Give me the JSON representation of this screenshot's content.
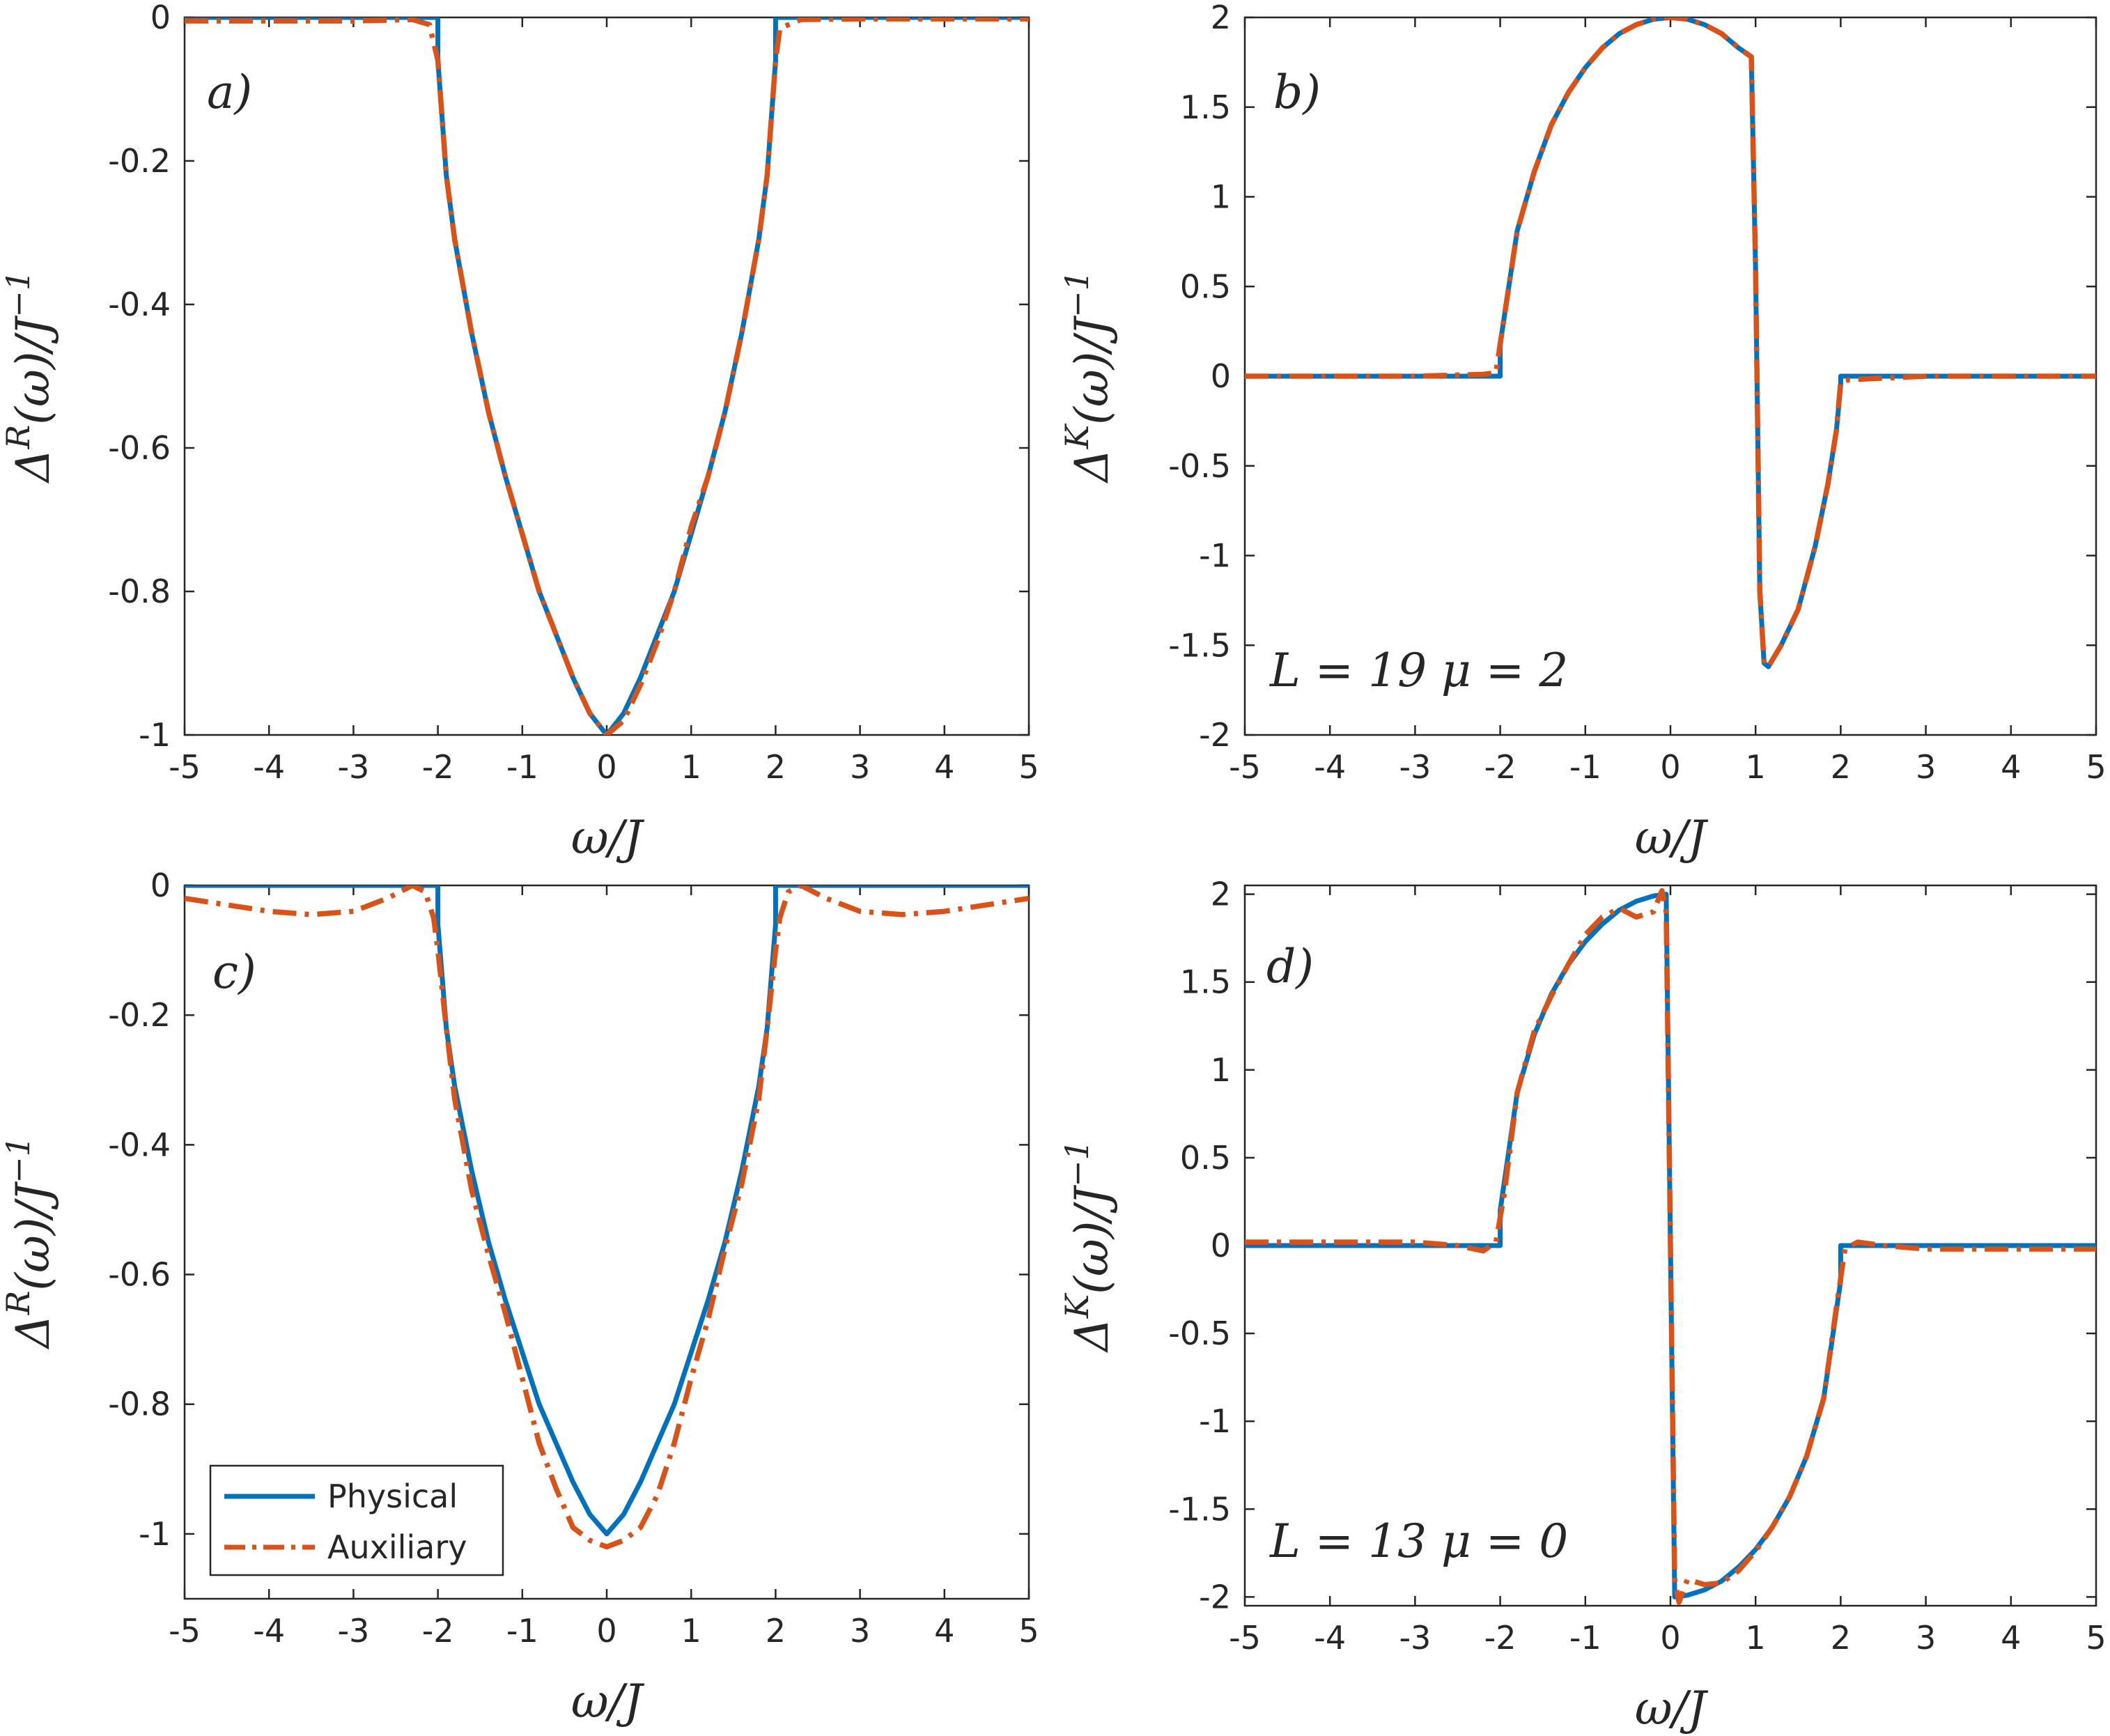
{
  "colors": {
    "physical": "#0072BD",
    "auxiliary": "#D95319",
    "axis": "#262626"
  },
  "legend": {
    "entries": [
      "Physical",
      "Auxiliary"
    ]
  },
  "chart_data": [
    {
      "type": "line",
      "panel_label": "a)",
      "xlabel": "ω/J",
      "ylabel": "ΔR(ω)/J−1",
      "xlim": [
        -5,
        5
      ],
      "ylim": [
        -1,
        0
      ],
      "xticks": [
        -5,
        -4,
        -3,
        -2,
        -1,
        0,
        1,
        2,
        3,
        4,
        5
      ],
      "yticks": [
        -1,
        -0.8,
        -0.6,
        -0.4,
        -0.2,
        0
      ],
      "xtick_labels": [
        "-5",
        "-4",
        "-3",
        "-2",
        "-1",
        "0",
        "1",
        "2",
        "3",
        "4",
        "5"
      ],
      "ytick_labels": [
        "-1",
        "-0.8",
        "-0.6",
        "-0.4",
        "-0.2",
        "0"
      ],
      "series": [
        {
          "name": "Physical",
          "style": "solid",
          "x": [
            -5,
            -2,
            -2,
            -1.9,
            -1.8,
            -1.6,
            -1.4,
            -1.2,
            -1,
            -0.8,
            -0.6,
            -0.4,
            -0.2,
            0,
            0.2,
            0.4,
            0.6,
            0.8,
            1,
            1.2,
            1.4,
            1.6,
            1.8,
            1.9,
            2,
            2,
            5
          ],
          "y": [
            0,
            0,
            -0.06,
            -0.22,
            -0.31,
            -0.44,
            -0.55,
            -0.64,
            -0.72,
            -0.8,
            -0.86,
            -0.92,
            -0.97,
            -1,
            -0.97,
            -0.92,
            -0.86,
            -0.8,
            -0.72,
            -0.64,
            -0.55,
            -0.44,
            -0.31,
            -0.22,
            -0.06,
            0,
            0
          ]
        },
        {
          "name": "Auxiliary",
          "style": "dashdot",
          "x": [
            -5,
            -3,
            -2.3,
            -2.1,
            -2,
            -1.9,
            -1.8,
            -1.6,
            -1.4,
            -1.2,
            -1,
            -0.8,
            -0.6,
            -0.4,
            -0.2,
            0,
            0.2,
            0.4,
            0.6,
            0.8,
            1,
            1.2,
            1.4,
            1.6,
            1.8,
            1.9,
            2,
            2.05,
            2.3,
            3,
            5
          ],
          "y": [
            -0.005,
            -0.005,
            -0.003,
            -0.01,
            -0.06,
            -0.22,
            -0.31,
            -0.44,
            -0.55,
            -0.64,
            -0.72,
            -0.8,
            -0.86,
            -0.92,
            -0.97,
            -1,
            -0.98,
            -0.93,
            -0.87,
            -0.8,
            -0.71,
            -0.64,
            -0.55,
            -0.44,
            -0.31,
            -0.22,
            -0.06,
            -0.015,
            -0.003,
            -0.002,
            -0.002
          ]
        }
      ]
    },
    {
      "type": "line",
      "panel_label": "b)",
      "annotation": "L = 19  μ = 2",
      "xlabel": "ω/J",
      "ylabel": "ΔK(ω)/J−1",
      "xlim": [
        -5,
        5
      ],
      "ylim": [
        -2,
        2
      ],
      "xticks": [
        -5,
        -4,
        -3,
        -2,
        -1,
        0,
        1,
        2,
        3,
        4,
        5
      ],
      "yticks": [
        -2,
        -1.5,
        -1,
        -0.5,
        0,
        0.5,
        1,
        1.5,
        2
      ],
      "xtick_labels": [
        "-5",
        "-4",
        "-3",
        "-2",
        "-1",
        "0",
        "1",
        "2",
        "3",
        "4",
        "5"
      ],
      "ytick_labels": [
        "-2",
        "-1.5",
        "-1",
        "-0.5",
        "0",
        "0.5",
        "1",
        "1.5",
        "2"
      ],
      "series": [
        {
          "name": "Physical",
          "style": "solid",
          "x": [
            -5,
            -2,
            -2,
            -1.8,
            -1.6,
            -1.4,
            -1.2,
            -1,
            -0.8,
            -0.6,
            -0.4,
            -0.2,
            0,
            0.2,
            0.4,
            0.6,
            0.8,
            0.95,
            1,
            1.05,
            1.1,
            1.15,
            1.3,
            1.5,
            1.7,
            1.85,
            1.95,
            2,
            2,
            5
          ],
          "y": [
            0,
            0,
            0.18,
            0.81,
            1.14,
            1.4,
            1.58,
            1.72,
            1.83,
            1.91,
            1.96,
            1.99,
            2,
            1.99,
            1.96,
            1.91,
            1.83,
            1.78,
            0.6,
            -1.2,
            -1.6,
            -1.62,
            -1.5,
            -1.3,
            -0.95,
            -0.6,
            -0.3,
            -0.05,
            0,
            0
          ]
        },
        {
          "name": "Auxiliary",
          "style": "dashdot",
          "x": [
            -5,
            -3,
            -2.2,
            -2.05,
            -2,
            -1.8,
            -1.6,
            -1.4,
            -1.2,
            -1,
            -0.8,
            -0.6,
            -0.4,
            -0.2,
            0,
            0.2,
            0.4,
            0.6,
            0.8,
            0.95,
            1,
            1.05,
            1.1,
            1.15,
            1.3,
            1.5,
            1.7,
            1.85,
            1.95,
            2,
            2.1,
            3,
            5
          ],
          "y": [
            0,
            0,
            0.01,
            0.02,
            0.18,
            0.81,
            1.14,
            1.4,
            1.58,
            1.72,
            1.83,
            1.91,
            1.96,
            1.99,
            2,
            1.99,
            1.96,
            1.91,
            1.83,
            1.78,
            0.6,
            -1.2,
            -1.6,
            -1.62,
            -1.5,
            -1.3,
            -0.95,
            -0.6,
            -0.3,
            -0.03,
            -0.02,
            0,
            0
          ]
        }
      ]
    },
    {
      "type": "line",
      "panel_label": "c)",
      "xlabel": "ω/J",
      "ylabel": "ΔR(ω)/J−1",
      "xlim": [
        -5,
        5
      ],
      "ylim": [
        -1.1,
        0
      ],
      "xticks": [
        -5,
        -4,
        -3,
        -2,
        -1,
        0,
        1,
        2,
        3,
        4,
        5
      ],
      "yticks": [
        -1,
        -0.8,
        -0.6,
        -0.4,
        -0.2,
        0
      ],
      "xtick_labels": [
        "-5",
        "-4",
        "-3",
        "-2",
        "-1",
        "0",
        "1",
        "2",
        "3",
        "4",
        "5"
      ],
      "ytick_labels": [
        "-1",
        "-0.8",
        "-0.6",
        "-0.4",
        "-0.2",
        "0"
      ],
      "series": [
        {
          "name": "Physical",
          "style": "solid",
          "x": [
            -5,
            -2,
            -2,
            -1.9,
            -1.8,
            -1.6,
            -1.4,
            -1.2,
            -1,
            -0.8,
            -0.6,
            -0.4,
            -0.2,
            0,
            0.2,
            0.4,
            0.6,
            0.8,
            1,
            1.2,
            1.4,
            1.6,
            1.8,
            1.9,
            2,
            2,
            5
          ],
          "y": [
            0,
            0,
            -0.06,
            -0.22,
            -0.31,
            -0.44,
            -0.55,
            -0.64,
            -0.72,
            -0.8,
            -0.86,
            -0.92,
            -0.97,
            -1,
            -0.97,
            -0.92,
            -0.86,
            -0.8,
            -0.72,
            -0.64,
            -0.55,
            -0.44,
            -0.31,
            -0.22,
            -0.06,
            0,
            0
          ]
        },
        {
          "name": "Auxiliary",
          "style": "dashdot",
          "x": [
            -5,
            -4.5,
            -4,
            -3.5,
            -3,
            -2.6,
            -2.3,
            -2.15,
            -2.05,
            -2,
            -1.9,
            -1.8,
            -1.6,
            -1.4,
            -1.2,
            -1,
            -0.8,
            -0.6,
            -0.4,
            -0.2,
            0,
            0.2,
            0.4,
            0.6,
            0.8,
            1,
            1.2,
            1.4,
            1.6,
            1.8,
            1.9,
            2,
            2.05,
            2.15,
            2.3,
            2.6,
            3,
            3.5,
            4,
            4.5,
            5
          ],
          "y": [
            -0.02,
            -0.03,
            -0.04,
            -0.045,
            -0.04,
            -0.02,
            0,
            -0.01,
            -0.05,
            -0.1,
            -0.22,
            -0.33,
            -0.47,
            -0.57,
            -0.66,
            -0.76,
            -0.86,
            -0.93,
            -0.99,
            -1.01,
            -1.02,
            -1.01,
            -0.99,
            -0.94,
            -0.86,
            -0.76,
            -0.67,
            -0.56,
            -0.46,
            -0.33,
            -0.22,
            -0.1,
            -0.05,
            -0.01,
            0,
            -0.02,
            -0.04,
            -0.045,
            -0.04,
            -0.03,
            -0.02
          ]
        }
      ]
    },
    {
      "type": "line",
      "panel_label": "d)",
      "annotation": "L = 13  μ = 0",
      "xlabel": "ω/J",
      "ylabel": "ΔK(ω)/J−1",
      "xlim": [
        -5,
        5
      ],
      "ylim": [
        -2.05,
        2.05
      ],
      "xticks": [
        -5,
        -4,
        -3,
        -2,
        -1,
        0,
        1,
        2,
        3,
        4,
        5
      ],
      "yticks": [
        -2,
        -1.5,
        -1,
        -0.5,
        0,
        0.5,
        1,
        1.5,
        2
      ],
      "xtick_labels": [
        "-5",
        "-4",
        "-3",
        "-2",
        "-1",
        "0",
        "1",
        "2",
        "3",
        "4",
        "5"
      ],
      "ytick_labels": [
        "-2",
        "-1.5",
        "-1",
        "-0.5",
        "0",
        "0.5",
        "1",
        "1.5",
        "2"
      ],
      "series": [
        {
          "name": "Physical",
          "style": "solid",
          "x": [
            -5,
            -2,
            -2,
            -1.8,
            -1.6,
            -1.4,
            -1.2,
            -1,
            -0.8,
            -0.6,
            -0.4,
            -0.2,
            -0.05,
            0.05,
            0.2,
            0.4,
            0.6,
            0.8,
            1,
            1.2,
            1.4,
            1.6,
            1.8,
            2,
            2,
            5
          ],
          "y": [
            0,
            0,
            0.2,
            0.87,
            1.2,
            1.43,
            1.6,
            1.73,
            1.83,
            1.91,
            1.96,
            1.99,
            2,
            -2,
            -1.99,
            -1.96,
            -1.91,
            -1.83,
            -1.73,
            -1.6,
            -1.43,
            -1.2,
            -0.87,
            -0.2,
            0,
            0
          ]
        },
        {
          "name": "Auxiliary",
          "style": "dashdot",
          "x": [
            -5,
            -4,
            -3,
            -2.5,
            -2.2,
            -2.05,
            -1.95,
            -1.8,
            -1.6,
            -1.4,
            -1.2,
            -1,
            -0.8,
            -0.6,
            -0.4,
            -0.2,
            -0.1,
            -0.05,
            0,
            0.05,
            0.1,
            0.2,
            0.4,
            0.6,
            0.8,
            1,
            1.2,
            1.4,
            1.6,
            1.8,
            1.95,
            2.05,
            2.2,
            2.5,
            3,
            4,
            5
          ],
          "y": [
            0.02,
            0.02,
            0.02,
            0,
            -0.03,
            0.02,
            0.3,
            0.87,
            1.22,
            1.42,
            1.6,
            1.77,
            1.87,
            1.92,
            1.87,
            1.9,
            2.02,
            1.9,
            0,
            -1.9,
            -2.03,
            -1.9,
            -1.93,
            -1.92,
            -1.85,
            -1.74,
            -1.6,
            -1.43,
            -1.2,
            -0.87,
            -0.35,
            -0.02,
            0.02,
            0,
            -0.02,
            -0.02,
            -0.02
          ]
        }
      ]
    }
  ]
}
